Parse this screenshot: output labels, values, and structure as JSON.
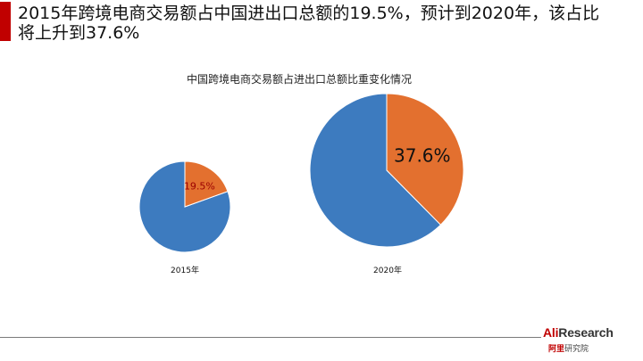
{
  "slide": {
    "title": "2015年跨境电商交易额占中国进出口总额的19.5%，预计到2020年，该占比将上升到37.6%"
  },
  "chart_data": {
    "type": "pie",
    "title": "中国跨境电商交易额占进出口总额比重变化情况",
    "series": [
      {
        "category": "2015年",
        "share_percent": 19.5,
        "label": "19.5%",
        "relative_size": 0.6
      },
      {
        "category": "2020年",
        "share_percent": 37.6,
        "label": "37.6%",
        "relative_size": 1.0
      }
    ],
    "colors": {
      "share": "#e3702f",
      "rest": "#3d7bbf"
    },
    "legend": "none"
  },
  "brand": {
    "name_en_prefix": "Ali",
    "name_en_suffix": "Research",
    "name_cn_prefix": "阿里",
    "name_cn_suffix": "研究院"
  }
}
